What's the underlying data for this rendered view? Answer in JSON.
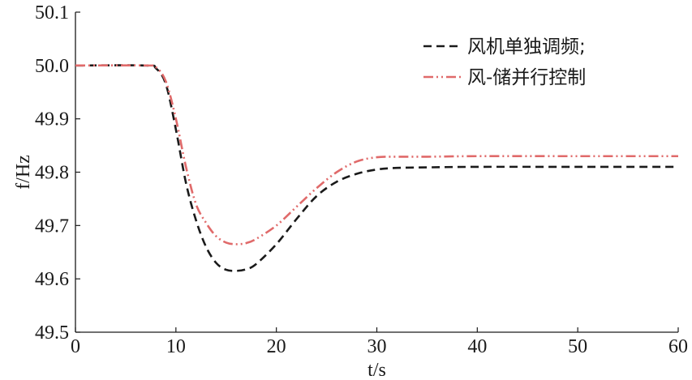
{
  "chart_data": {
    "type": "line",
    "xlabel": "t/s",
    "ylabel": "f/Hz",
    "xlim": [
      0,
      60
    ],
    "ylim": [
      49.5,
      50.1
    ],
    "xticks": [
      "0",
      "10",
      "20",
      "30",
      "40",
      "50",
      "60"
    ],
    "yticks": [
      "49.5",
      "49.6",
      "49.7",
      "49.8",
      "49.9",
      "50.0",
      "50.1"
    ],
    "grid": false,
    "legend_position": "top-right",
    "series": [
      {
        "name": "风机单独调频;",
        "color": "#1a1a1a",
        "dash": "dashed",
        "x": [
          0,
          7,
          8,
          9,
          10,
          11,
          12,
          13,
          14,
          15,
          16,
          17,
          18,
          20,
          22,
          24,
          26,
          28,
          30,
          32,
          35,
          40,
          50,
          60
        ],
        "y": [
          50.0,
          50.0,
          49.995,
          49.965,
          49.88,
          49.78,
          49.71,
          49.66,
          49.63,
          49.617,
          49.615,
          49.618,
          49.628,
          49.665,
          49.712,
          49.755,
          49.782,
          49.797,
          49.805,
          49.808,
          49.809,
          49.81,
          49.81,
          49.81
        ]
      },
      {
        "name": "风-储并行控制",
        "color": "#e06a6a",
        "dash": "dash-dot-dot",
        "x": [
          0,
          7,
          8,
          9,
          10,
          11,
          12,
          13,
          14,
          15,
          16,
          17,
          18,
          20,
          22,
          24,
          26,
          28,
          30,
          32,
          35,
          40,
          50,
          60
        ],
        "y": [
          50.0,
          50.0,
          49.997,
          49.97,
          49.9,
          49.81,
          49.74,
          49.705,
          49.68,
          49.668,
          49.665,
          49.667,
          49.675,
          49.7,
          49.735,
          49.77,
          49.8,
          49.82,
          49.828,
          49.829,
          49.829,
          49.83,
          49.83,
          49.83
        ]
      }
    ]
  }
}
